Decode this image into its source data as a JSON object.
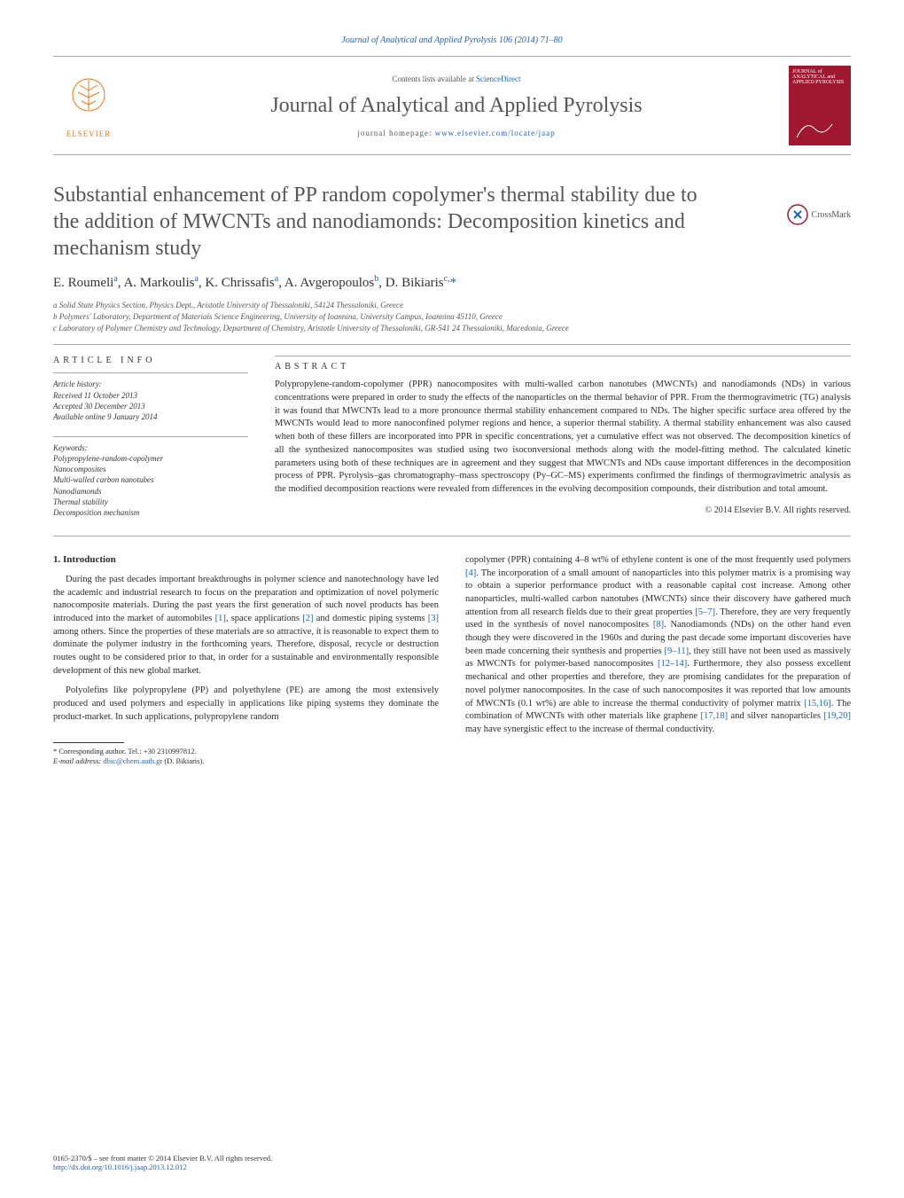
{
  "top_line": "Journal of Analytical and Applied Pyrolysis 106 (2014) 71–80",
  "masthead": {
    "contents_prefix": "Contents lists available at ",
    "contents_link": "ScienceDirect",
    "journal_title": "Journal of Analytical and Applied Pyrolysis",
    "homepage_prefix": "journal homepage: ",
    "homepage_url": "www.elsevier.com/locate/jaap",
    "publisher": "ELSEVIER",
    "cover_text_top": "JOURNAL of ANALYTICAL and APPLIED PYROLYSIS"
  },
  "crossmark_label": "CrossMark",
  "title": "Substantial enhancement of PP random copolymer's thermal stability due to the addition of MWCNTs and nanodiamonds: Decomposition kinetics and mechanism study",
  "authors_html": "E. Roumeli<sup>a</sup>, A. Markoulis<sup>a</sup>, K. Chrissafis<sup>a</sup>, A. Avgeropoulos<sup>b</sup>, D. Bikiaris<sup>c,</sup><span class='corr'>*</span>",
  "affiliations": [
    "a Solid State Physics Section, Physics Dept., Aristotle University of Thessaloniki, 54124 Thessaloniki, Greece",
    "b Polymers' Laboratory, Department of Materials Science Engineering, University of Ioannina, University Campus, Ioannina 45110, Greece",
    "c Laboratory of Polymer Chemistry and Technology, Department of Chemistry, Aristotle University of Thessaloniki, GR-541 24 Thessaloniki, Macedonia, Greece"
  ],
  "article_info_heading": "article info",
  "abstract_heading": "abstract",
  "history": {
    "label": "Article history:",
    "received": "Received 11 October 2013",
    "accepted": "Accepted 30 December 2013",
    "online": "Available online 9 January 2014"
  },
  "keywords": {
    "label": "Keywords:",
    "items": [
      "Polypropylene-random-copolymer",
      "Nanocomposites",
      "Multi-walled carbon nanotubes",
      "Nanodiamonds",
      "Thermal stability",
      "Decomposition mechanism"
    ]
  },
  "abstract_text": "Polypropylene-random-copolymer (PPR) nanocomposites with multi-walled carbon nanotubes (MWCNTs) and nanodiamonds (NDs) in various concentrations were prepared in order to study the effects of the nanoparticles on the thermal behavior of PPR. From the thermogravimetric (TG) analysis it was found that MWCNTs lead to a more pronounce thermal stability enhancement compared to NDs. The higher specific surface area offered by the MWCNTs would lead to more nanoconfined polymer regions and hence, a superior thermal stability. A thermal stability enhancement was also caused when both of these fillers are incorporated into PPR in specific concentrations, yet a cumulative effect was not observed. The decomposition kinetics of all the synthesized nanocomposites was studied using two isoconversional methods along with the model-fitting method. The calculated kinetic parameters using both of these techniques are in agreement and they suggest that MWCNTs and NDs cause important differences in the decomposition process of PPR. Pyrolysis–gas chromatography–mass spectroscopy (Py–GC–MS) experiments confirmed the findings of thermogravimetric analysis as the modified decomposition reactions were revealed from differences in the evolving decomposition compounds, their distribution and total amount.",
  "copyright": "© 2014 Elsevier B.V. All rights reserved.",
  "intro_heading": "1. Introduction",
  "col1_p1": "During the past decades important breakthroughs in polymer science and nanotechnology have led the academic and industrial research to focus on the preparation and optimization of novel polymeric nanocomposite materials. During the past years the first generation of such novel products has been introduced into the market of automobiles [1], space applications [2] and domestic piping systems [3] among others. Since the properties of these materials are so attractive, it is reasonable to expect them to dominate the polymer industry in the forthcoming years. Therefore, disposal, recycle or destruction routes ought to be considered prior to that, in order for a sustainable and environmentally responsible development of this new global market.",
  "col1_p2": "Polyolefins like polypropylene (PP) and polyethylene (PE) are among the most extensively produced and used polymers and especially in applications like piping systems they dominate the product-market. In such applications, polypropylene random",
  "col2_p1": "copolymer (PPR) containing 4–8 wt% of ethylene content is one of the most frequently used polymers [4]. The incorporation of a small amount of nanoparticles into this polymer matrix is a promising way to obtain a superior performance product with a reasonable capital cost increase. Among other nanoparticles, multi-walled carbon nanotubes (MWCNTs) since their discovery have gathered much attention from all research fields due to their great properties [5–7]. Therefore, they are very frequently used in the synthesis of novel nanocomposites [8]. Nanodiamonds (NDs) on the other hand even though they were discovered in the 1960s and during the past decade some important discoveries have been made concerning their synthesis and properties [9–11], they still have not been used as massively as MWCNTs for polymer-based nanocomposites [12–14]. Furthermore, they also possess excellent mechanical and other properties and therefore, they are promising candidates for the preparation of novel polymer nanocomposites. In the case of such nanocomposites it was reported that low amounts of MWCNTs (0.1 wt%) are able to increase the thermal conductivity of polymer matrix [15,16]. The combination of MWCNTs with other materials like graphene [17,18] and silver nanoparticles [19,20] may have synergistic effect to the increase of thermal conductivity.",
  "footnote": {
    "corr": "* Corresponding author. Tel.: +30 2310997812.",
    "email_label": "E-mail address:",
    "email": "dbic@chem.auth.gr",
    "email_name": "(D. Bikiaris)."
  },
  "footer": {
    "issn": "0165-2370/$ – see front matter © 2014 Elsevier B.V. All rights reserved.",
    "doi": "http://dx.doi.org/10.1016/j.jaap.2013.12.012"
  },
  "refs_in_body": [
    "[1]",
    "[2]",
    "[3]",
    "[4]",
    "[5–7]",
    "[8]",
    "[9–11]",
    "[12–14]",
    "[15,16]",
    "[17,18]",
    "[19,20]"
  ],
  "colors": {
    "link": "#2060c0",
    "elsevier_orange": "#e67817",
    "cover_bg": "#a01830",
    "text": "#2a2a2a",
    "grey": "#555555",
    "rule": "#aaaaaa"
  },
  "typography": {
    "title_size_pt": 24,
    "body_size_pt": 10.5,
    "affiliation_size_pt": 9,
    "footnote_size_pt": 8.5
  }
}
